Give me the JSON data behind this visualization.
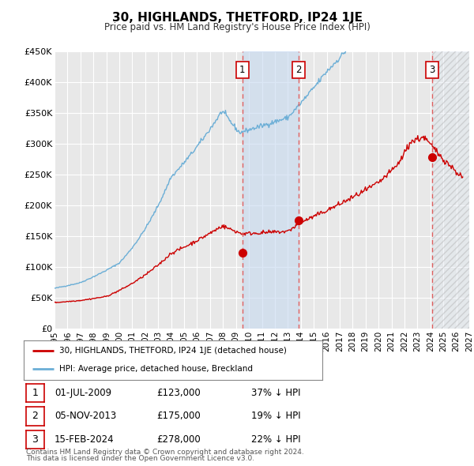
{
  "title": "30, HIGHLANDS, THETFORD, IP24 1JE",
  "subtitle": "Price paid vs. HM Land Registry's House Price Index (HPI)",
  "ylim": [
    0,
    450000
  ],
  "yticks": [
    0,
    50000,
    100000,
    150000,
    200000,
    250000,
    300000,
    350000,
    400000,
    450000
  ],
  "ytick_labels": [
    "£0",
    "£50K",
    "£100K",
    "£150K",
    "£200K",
    "£250K",
    "£300K",
    "£350K",
    "£400K",
    "£450K"
  ],
  "xlim_start": 1995,
  "xlim_end": 2027,
  "xticks": [
    1995,
    1996,
    1997,
    1998,
    1999,
    2000,
    2001,
    2002,
    2003,
    2004,
    2005,
    2006,
    2007,
    2008,
    2009,
    2010,
    2011,
    2012,
    2013,
    2014,
    2015,
    2016,
    2017,
    2018,
    2019,
    2020,
    2021,
    2022,
    2023,
    2024,
    2025,
    2026,
    2027
  ],
  "hpi_color": "#6baed6",
  "price_color": "#cc0000",
  "marker_color": "#cc0000",
  "sale1_x": 2009.5,
  "sale1_y": 123000,
  "sale1_label": "1",
  "sale1_date": "01-JUL-2009",
  "sale1_price": "£123,000",
  "sale1_pct": "37% ↓ HPI",
  "sale2_x": 2013.84,
  "sale2_y": 175000,
  "sale2_label": "2",
  "sale2_date": "05-NOV-2013",
  "sale2_price": "£175,000",
  "sale2_pct": "19% ↓ HPI",
  "sale3_x": 2024.12,
  "sale3_y": 278000,
  "sale3_label": "3",
  "sale3_date": "15-FEB-2024",
  "sale3_price": "£278,000",
  "sale3_pct": "22% ↓ HPI",
  "shade1_start": 2009.5,
  "shade1_end": 2013.84,
  "hatch_start": 2024.12,
  "legend_line1": "30, HIGHLANDS, THETFORD, IP24 1JE (detached house)",
  "legend_line2": "HPI: Average price, detached house, Breckland",
  "footer1": "Contains HM Land Registry data © Crown copyright and database right 2024.",
  "footer2": "This data is licensed under the Open Government Licence v3.0.",
  "background_color": "#ffffff",
  "plot_bg_color": "#e8e8e8"
}
